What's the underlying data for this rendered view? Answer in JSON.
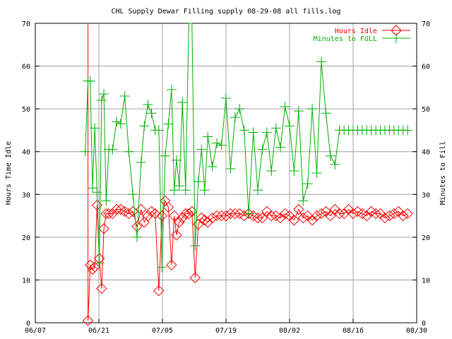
{
  "chart_data": {
    "type": "line",
    "title": "CHL Supply Dewar Filling supply 08-29-08 all fills.log",
    "ylabel": "Hours Time Idle",
    "y2label": "Minutes to Fill",
    "xlabel": "",
    "ylim": [
      0,
      70
    ],
    "y2lim": [
      0,
      70
    ],
    "yticks": [
      "0",
      "10",
      "20",
      "30",
      "40",
      "50",
      "60",
      "70"
    ],
    "y2ticks": [
      "0",
      "10",
      "20",
      "30",
      "40",
      "50",
      "60",
      "70"
    ],
    "xticks": [
      "06/07",
      "06/21",
      "07/05",
      "07/19",
      "08/02",
      "08/16",
      "08/30"
    ],
    "xlim_days": [
      0,
      84
    ],
    "grid": true,
    "legend_position": "top-right",
    "series": [
      {
        "name": "Hours Idle",
        "color": "#ff0000",
        "marker": "diamond",
        "x": [
          11.6,
          12.1,
          12.6,
          13.1,
          13.6,
          14.1,
          14.6,
          15.1,
          15.6,
          16.2,
          17.0,
          17.9,
          18.8,
          19.7,
          20.6,
          21.5,
          22.4,
          23.3,
          24.0,
          24.8,
          25.6,
          26.4,
          27.2,
          27.9,
          28.6,
          29.3,
          30.0,
          30.6,
          31.1,
          31.7,
          32.4,
          33.1,
          33.8,
          34.5,
          35.2,
          35.9,
          36.6,
          37.3,
          38.0,
          39.0,
          40.0,
          41.0,
          42.0,
          43.0,
          44.0,
          45.0,
          46.0,
          47.0,
          48.0,
          49.0,
          50.0,
          51.0,
          52.0,
          53.0,
          54.0,
          55.0,
          56.0,
          57.0,
          58.0,
          59.0,
          60.0,
          61.0,
          62.0,
          63.0,
          64.0,
          65.0,
          66.0,
          67.0,
          68.0,
          69.0,
          70.0,
          71.0,
          72.0,
          73.0,
          74.0,
          75.0,
          76.0,
          77.0,
          78.0,
          79.0,
          80.0,
          81.0,
          82.0
        ],
        "values": [
          0.5,
          13.5,
          12.5,
          13.0,
          27.5,
          15.0,
          8.0,
          22.0,
          25.5,
          25.5,
          25.5,
          26.5,
          26.5,
          26.0,
          25.5,
          26.0,
          22.5,
          26.5,
          23.5,
          25.0,
          26.0,
          25.5,
          7.5,
          25.0,
          28.5,
          27.0,
          13.5,
          25.0,
          20.5,
          23.5,
          24.5,
          25.5,
          25.5,
          26.0,
          10.5,
          23.0,
          24.5,
          24.0,
          23.5,
          24.5,
          25.0,
          25.0,
          25.0,
          25.5,
          25.5,
          25.5,
          25.0,
          25.5,
          25.0,
          24.5,
          24.5,
          26.0,
          25.0,
          25.0,
          24.5,
          25.5,
          25.0,
          24.0,
          26.5,
          24.5,
          25.0,
          24.0,
          25.0,
          25.5,
          26.0,
          25.0,
          26.5,
          25.5,
          25.5,
          26.5,
          25.5,
          26.0,
          25.5,
          25.0,
          26.0,
          25.5,
          25.5,
          24.5,
          25.0,
          25.5,
          26.0,
          25.0,
          25.5
        ]
      },
      {
        "name": "Minutes to FULL",
        "color": "#00b000",
        "marker": "cross",
        "x": [
          11.0,
          11.6,
          12.1,
          12.6,
          13.1,
          13.6,
          14.1,
          14.6,
          15.1,
          15.6,
          16.2,
          17.0,
          17.9,
          18.8,
          19.7,
          20.6,
          21.5,
          22.4,
          23.3,
          24.0,
          24.8,
          25.6,
          26.4,
          27.2,
          27.9,
          28.6,
          29.3,
          30.0,
          30.6,
          31.1,
          31.7,
          32.4,
          33.1,
          33.8,
          34.5,
          35.2,
          35.9,
          36.6,
          37.3,
          38.0,
          39.0,
          40.0,
          41.0,
          42.0,
          43.0,
          44.0,
          45.0,
          46.0,
          47.0,
          48.0,
          49.0,
          50.0,
          51.0,
          52.0,
          53.0,
          54.0,
          55.0,
          56.0,
          57.0,
          58.0,
          59.0,
          60.0,
          61.0,
          62.0,
          63.0,
          64.0,
          65.0,
          66.0,
          67.0,
          68.0,
          69.0,
          70.0,
          71.0,
          72.0,
          73.0,
          74.0,
          75.0,
          76.0,
          77.0,
          78.0,
          79.0,
          80.0,
          81.0,
          82.0
        ],
        "values": [
          40.0,
          56.5,
          56.5,
          31.5,
          45.5,
          30.5,
          14.0,
          52.0,
          53.5,
          28.5,
          40.5,
          40.5,
          47.0,
          46.5,
          53.0,
          40.0,
          30.0,
          20.0,
          37.5,
          46.0,
          51.0,
          49.0,
          45.0,
          45.0,
          13.0,
          39.0,
          46.5,
          54.5,
          31.0,
          38.0,
          32.0,
          51.5,
          31.0,
          70.0,
          70.0,
          18.0,
          33.0,
          40.5,
          31.0,
          43.5,
          36.5,
          42.0,
          41.5,
          52.5,
          36.0,
          48.0,
          50.0,
          45.0,
          25.5,
          44.5,
          31.0,
          40.5,
          44.5,
          35.5,
          45.5,
          41.0,
          50.5,
          46.0,
          35.5,
          49.5,
          28.5,
          32.5,
          50.0,
          35.0,
          61.0,
          49.0,
          39.0,
          37.0,
          45.0,
          45.0,
          45.0,
          45.0,
          45.0,
          45.0,
          45.0,
          45.0,
          45.0,
          45.0,
          45.0,
          45.0,
          45.0,
          45.0,
          45.0,
          45.0
        ]
      }
    ]
  }
}
